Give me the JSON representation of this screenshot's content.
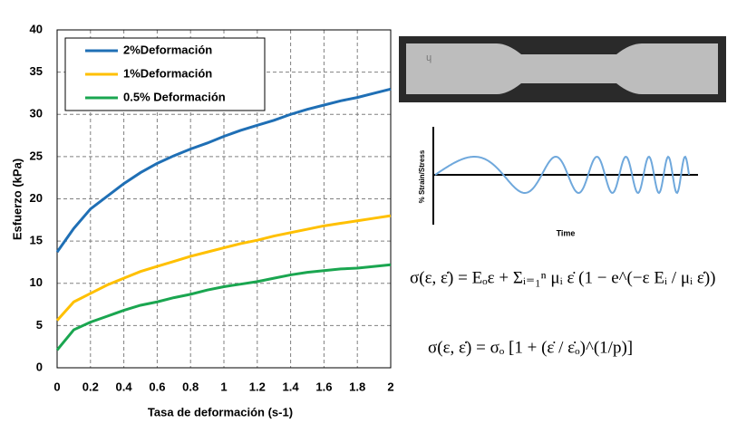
{
  "chart_data": {
    "type": "line",
    "x_label": "Tasa de deformación (s-1)",
    "y_label": "Esfuerzo (kPa)",
    "x": [
      0,
      0.1,
      0.2,
      0.3,
      0.4,
      0.5,
      0.6,
      0.7,
      0.8,
      0.9,
      1,
      1.1,
      1.2,
      1.3,
      1.4,
      1.5,
      1.6,
      1.7,
      1.8,
      1.9,
      2
    ],
    "series": [
      {
        "name": "2%Deformación",
        "color": "#1f6fb5",
        "values": [
          13.7,
          16.5,
          18.8,
          20.3,
          21.8,
          23.1,
          24.2,
          25.1,
          25.9,
          26.6,
          27.4,
          28.1,
          28.7,
          29.3,
          30.0,
          30.6,
          31.1,
          31.6,
          32.0,
          32.5,
          33.0
        ]
      },
      {
        "name": "1%Deformación",
        "color": "#ffc000",
        "values": [
          5.6,
          7.8,
          8.8,
          9.8,
          10.6,
          11.4,
          12.0,
          12.6,
          13.2,
          13.7,
          14.2,
          14.7,
          15.1,
          15.6,
          16.0,
          16.4,
          16.8,
          17.1,
          17.4,
          17.7,
          18.0
        ]
      },
      {
        "name": "0.5% Deformación",
        "color": "#1aa650",
        "values": [
          2.1,
          4.5,
          5.4,
          6.1,
          6.8,
          7.4,
          7.8,
          8.3,
          8.7,
          9.2,
          9.6,
          9.9,
          10.2,
          10.6,
          11.0,
          11.3,
          11.5,
          11.7,
          11.8,
          12.0,
          12.2
        ]
      }
    ],
    "xlim": [
      0,
      2
    ],
    "xticks": [
      0,
      0.2,
      0.4,
      0.6,
      0.8,
      1,
      1.2,
      1.4,
      1.6,
      1.8,
      2
    ],
    "ylim": [
      0,
      40
    ],
    "yticks": [
      0,
      5,
      10,
      15,
      20,
      25,
      30,
      35,
      40
    ],
    "grid": true,
    "legend": "top-left"
  },
  "figure": {
    "wave_y_label": "% Strain/Stress",
    "wave_x_label": "Time",
    "equations": [
      "σ(ε, ε̇) = Eₒε + Σᵢ₌₁ⁿ μᵢ ε̇ (1 − e^(−ε Eᵢ / μᵢ ε̇))",
      "σ(ε, ε̇) = σₒ [1 + (ε̇ / ε̇ₒ)^(1/p)]"
    ]
  }
}
